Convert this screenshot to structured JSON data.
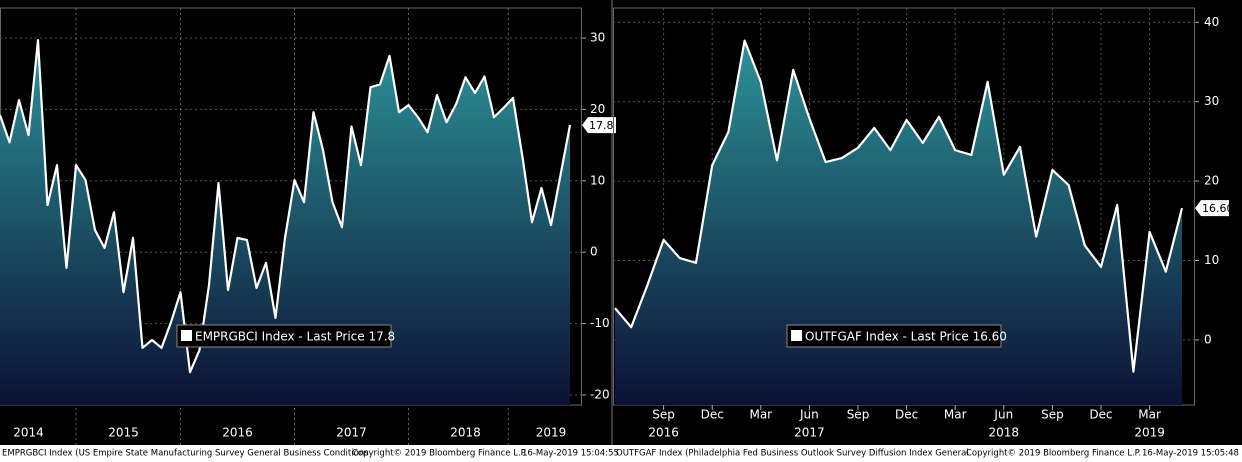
{
  "chart_data": [
    {
      "type": "area",
      "categories": [
        null,
        null,
        null,
        "2014",
        null,
        null,
        null,
        null,
        null,
        null,
        null,
        null,
        null,
        "2015",
        null,
        null,
        null,
        null,
        null,
        null,
        null,
        null,
        null,
        null,
        null,
        "2016",
        null,
        null,
        null,
        null,
        null,
        null,
        null,
        null,
        null,
        null,
        null,
        "2017",
        null,
        null,
        null,
        null,
        null,
        null,
        null,
        null,
        null,
        null,
        null,
        "2018",
        null,
        null,
        null,
        null,
        null,
        null,
        null,
        null,
        "2019",
        null,
        null
      ],
      "series": [
        {
          "name": "EMPRGBCI Index - Last Price 17.8",
          "color": "#ffffff",
          "values": [
            19.2,
            15.4,
            21.3,
            16.4,
            29.7,
            6.6,
            12.2,
            -2.2,
            12.2,
            10.1,
            3.1,
            0.6,
            5.6,
            -5.6,
            2.0,
            -13.4,
            -12.3,
            -13.4,
            -9.8,
            -5.6,
            -16.8,
            -13.7,
            -4.6,
            9.7,
            -5.3,
            2.0,
            1.7,
            -5.0,
            -1.5,
            -9.2,
            2.0,
            10.1,
            7.0,
            19.6,
            14.3,
            7.0,
            3.5,
            17.6,
            12.2,
            23.1,
            23.5,
            27.5,
            19.6,
            20.6,
            18.9,
            16.8,
            22.0,
            18.2,
            20.7,
            24.5,
            22.3,
            24.6,
            18.9,
            20.2,
            21.6,
            13.3,
            4.2,
            9.0,
            3.8,
            10.8,
            17.8
          ]
        }
      ],
      "fill_colors": [
        "#2c9399",
        "#0c1134"
      ],
      "ylim": [
        -21.4,
        34.2
      ],
      "yticks": [
        -20,
        -10,
        0,
        10,
        20,
        30
      ],
      "grid": true,
      "footnote": {
        "description": "EMPRGBCI Index (US Empire State Manufacturing Survey General Business Conditions",
        "copyright": "Copyright© 2019 Bloomberg Finance L.P.",
        "timestamp": "16-May-2019 15:04:55"
      }
    },
    {
      "type": "area",
      "categories": [
        null,
        null,
        null,
        "Sep",
        null,
        null,
        "Dec",
        null,
        null,
        "Mar",
        null,
        null,
        "Jun",
        null,
        null,
        "Sep",
        null,
        null,
        "Dec",
        null,
        null,
        "Mar",
        null,
        null,
        "Jun",
        null,
        null,
        "Sep",
        null,
        null,
        "Dec",
        null,
        null,
        "Mar",
        null,
        null
      ],
      "category_years": [
        null,
        null,
        null,
        "2016",
        null,
        null,
        null,
        null,
        null,
        null,
        null,
        null,
        "2017",
        null,
        null,
        null,
        null,
        null,
        null,
        null,
        null,
        null,
        null,
        null,
        "2018",
        null,
        null,
        null,
        null,
        null,
        null,
        null,
        null,
        "2019",
        null,
        null
      ],
      "series": [
        {
          "name": "OUTFGAF Index - Last Price 16.60",
          "color": "#ffffff",
          "values": [
            4.0,
            1.6,
            6.9,
            12.6,
            10.3,
            9.7,
            22.0,
            26.2,
            37.7,
            32.5,
            22.6,
            34.0,
            27.9,
            22.4,
            22.9,
            24.2,
            26.7,
            23.9,
            27.7,
            24.8,
            28.1,
            23.9,
            23.3,
            32.5,
            20.8,
            24.3,
            13.0,
            21.4,
            19.5,
            11.9,
            9.2,
            17.0,
            -4.0,
            13.6,
            8.6,
            16.6
          ],
          "value_labels": [
            null,
            null,
            null,
            null,
            null,
            null,
            null,
            null,
            null,
            null,
            null,
            null,
            null,
            null,
            null,
            null,
            null,
            null,
            null,
            null,
            null,
            null,
            null,
            null,
            null,
            null,
            null,
            null,
            null,
            null,
            null,
            null,
            null,
            null,
            null,
            "16.60"
          ]
        }
      ],
      "fill_colors": [
        "#2c9399",
        "#0c1134"
      ],
      "ylim": [
        -8.2,
        41.8
      ],
      "yticks": [
        0,
        10,
        20,
        30,
        40
      ],
      "grid": true,
      "footnote": {
        "description": "OUTFGAF Index (Philadelphia Fed Business Outlook Survey Diffusion Index General",
        "copyright": "Copyright© 2019 Bloomberg Finance L.P.",
        "timestamp": "16-May-2019 15:05:48"
      }
    }
  ]
}
